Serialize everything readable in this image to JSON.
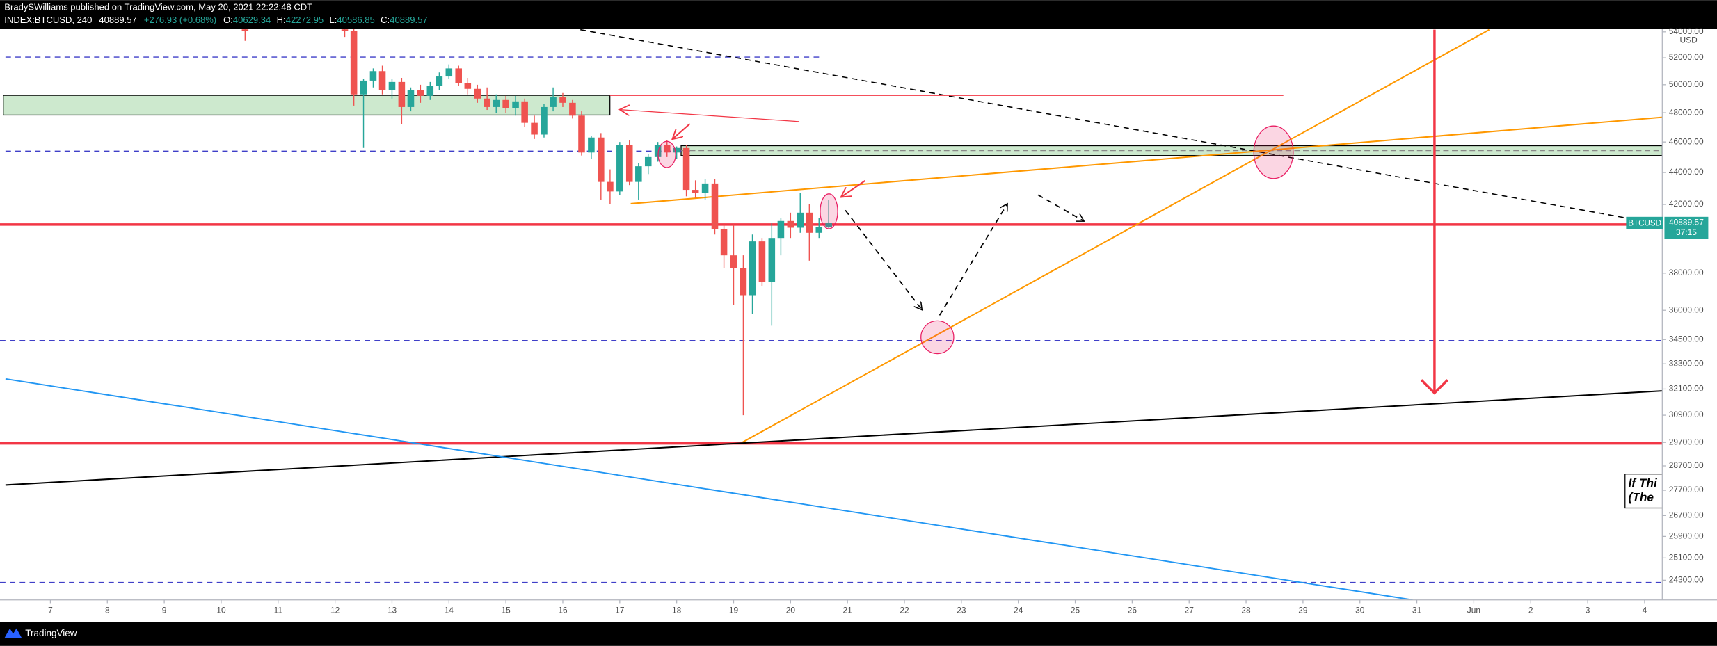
{
  "header": {
    "publisher": "BradySWilliams published on TradingView.com, May 20, 2021 22:22:48 CDT",
    "symbol": "INDEX:BTCUSD, 240",
    "last": "40889.57",
    "change": "+276.93 (+0.68%)",
    "ohlc": [
      {
        "label": "O:",
        "value": "40629.34"
      },
      {
        "label": "H:",
        "value": "42272.95"
      },
      {
        "label": "L:",
        "value": "40586.85"
      },
      {
        "label": "C:",
        "value": "40889.57"
      }
    ]
  },
  "price_tag": {
    "symbol": "BTCUSD",
    "price": 40889.57,
    "countdown": "37:15"
  },
  "currency": "USD",
  "note": {
    "lines": [
      "If Thi",
      "(The"
    ]
  },
  "footer": "TradingView",
  "chart_data": {
    "type": "candlestick",
    "log": true,
    "up_color": "#26a69a",
    "down_color": "#ef5350",
    "x": [
      10.42,
      12.17,
      12.33,
      12.5,
      12.67,
      12.83,
      13,
      13.17,
      13.33,
      13.5,
      13.67,
      13.83,
      14,
      14.17,
      14.33,
      14.5,
      14.67,
      14.83,
      15,
      15.17,
      15.33,
      15.5,
      15.67,
      15.83,
      16,
      16.17,
      16.33,
      16.5,
      16.67,
      16.83,
      17,
      17.17,
      17.33,
      17.5,
      17.67,
      17.83,
      18,
      18.17,
      18.33,
      18.5,
      18.67,
      18.83,
      19,
      19.17,
      19.33,
      19.5,
      19.67,
      19.83,
      20,
      20.17,
      20.33,
      20.5,
      20.67
    ],
    "open": [
      54200,
      54200,
      54100,
      49300,
      50300,
      51000,
      49600,
      50200,
      48400,
      49600,
      49200,
      49900,
      50600,
      51200,
      50100,
      49700,
      49000,
      48400,
      48900,
      48300,
      48800,
      47300,
      46500,
      48400,
      49100,
      48700,
      47800,
      45300,
      46300,
      43400,
      42800,
      45800,
      43400,
      44400,
      45000,
      45800,
      45300,
      45600,
      42900,
      42700,
      43300,
      40500,
      39000,
      38300,
      36800,
      39800,
      37500,
      40000,
      41000,
      40600,
      41500,
      40300,
      40629.34
    ],
    "high": [
      54260,
      54260,
      54260,
      50400,
      51200,
      51400,
      50400,
      50500,
      49800,
      50000,
      50200,
      50900,
      51500,
      51400,
      50500,
      50000,
      49800,
      49300,
      49200,
      49200,
      49000,
      47800,
      48600,
      49800,
      49400,
      48900,
      48100,
      46400,
      46600,
      44200,
      46000,
      46100,
      44600,
      45200,
      46000,
      46100,
      45700,
      45800,
      43500,
      43600,
      43600,
      40900,
      40800,
      39000,
      40200,
      40000,
      40900,
      41200,
      41500,
      42700,
      42000,
      41200,
      42272.95
    ],
    "low": [
      53300,
      53600,
      48500,
      45600,
      49800,
      49300,
      49000,
      47200,
      48100,
      48700,
      48900,
      49600,
      50400,
      49900,
      49300,
      48700,
      48200,
      48000,
      48000,
      47800,
      47000,
      46200,
      46300,
      48100,
      48400,
      47600,
      45100,
      44900,
      42300,
      42000,
      42600,
      43200,
      42300,
      43900,
      44700,
      45000,
      44900,
      42500,
      42400,
      42300,
      40200,
      38300,
      36300,
      30900,
      35800,
      37300,
      35200,
      39000,
      40000,
      40300,
      38700,
      40000,
      40586.85
    ],
    "close": [
      54100,
      54100,
      49300,
      50300,
      51000,
      49600,
      50200,
      48400,
      49600,
      49200,
      49900,
      50600,
      51200,
      50100,
      49700,
      49000,
      48400,
      48900,
      48300,
      48800,
      47300,
      46500,
      48400,
      49100,
      48700,
      47800,
      45300,
      46300,
      43400,
      42800,
      45800,
      43400,
      44400,
      45000,
      45800,
      45300,
      45600,
      42900,
      42700,
      43300,
      40500,
      39000,
      38300,
      36800,
      39800,
      37500,
      40000,
      41000,
      40600,
      41500,
      40300,
      40629.34,
      40889.57
    ],
    "xlim": [
      6.115,
      35.31
    ],
    "xticks": [
      7,
      8,
      9,
      10,
      11,
      12,
      13,
      14,
      15,
      16,
      17,
      18,
      19,
      20,
      21,
      22,
      23,
      24,
      25,
      26,
      27,
      28,
      29,
      30,
      31,
      {
        "value": 32,
        "label": "Jun"
      },
      {
        "value": 33,
        "label": "2"
      },
      {
        "value": 34,
        "label": "3"
      },
      {
        "value": 35,
        "label": "4"
      }
    ],
    "ylim": [
      23612,
      54259
    ],
    "yticks": [
      {
        "value": 54000,
        "label": "54000.00"
      },
      {
        "value": 52000,
        "label": "52000.00"
      },
      {
        "value": 50000,
        "label": "50000.00"
      },
      {
        "value": 48000,
        "label": "48000.00"
      },
      {
        "value": 46000,
        "label": "46000.00"
      },
      {
        "value": 44000,
        "label": "44000.00"
      },
      {
        "value": 42000,
        "label": "42000.00"
      },
      {
        "value": 38000,
        "label": "38000.00"
      },
      {
        "value": 36000,
        "label": "36000.00"
      },
      {
        "value": 34500,
        "label": "34500.00"
      },
      {
        "value": 33300,
        "label": "33300.00"
      },
      {
        "value": 32100,
        "label": "32100.00"
      },
      {
        "value": 30900,
        "label": "30900.00"
      },
      {
        "value": 29700,
        "label": "29700.00"
      },
      {
        "value": 28700,
        "label": "28700.00"
      },
      {
        "value": 27700,
        "label": "27700.00"
      },
      {
        "value": 26700,
        "label": "26700.00"
      },
      {
        "value": 25900,
        "label": "25900.00"
      },
      {
        "value": 25100,
        "label": "25100.00"
      },
      {
        "value": 24300,
        "label": "24300.00"
      }
    ]
  }
}
